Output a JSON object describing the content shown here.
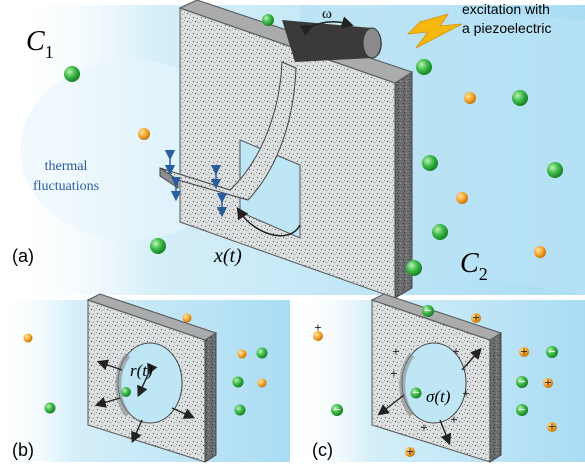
{
  "panel_a": {
    "label": "(a)",
    "c1": "C",
    "c1_sub": "1",
    "c2": "C",
    "c2_sub": "2",
    "omega": "ω",
    "excitation_line1": "excitation with",
    "excitation_line2": "a piezoelectric",
    "thermal_line1": "thermal",
    "thermal_line2": "fluctuations",
    "x_of_t": "x(t)"
  },
  "panel_b": {
    "label": "(b)",
    "r_of_t": "r(t)"
  },
  "panel_c": {
    "label": "(c)",
    "sigma_of_t": "σ(t)",
    "plus": "+",
    "minus": "−"
  },
  "colors": {
    "medium": "#bfe6f5",
    "medium_dark": "#8fd0ee",
    "membrane": "#d7d9da",
    "membrane_edge": "#6d6f70",
    "green_ion": "#2fae3c",
    "orange_ion": "#f4a02a",
    "thermal_text": "#2a5d9c",
    "bolt": "#f6b80f"
  }
}
